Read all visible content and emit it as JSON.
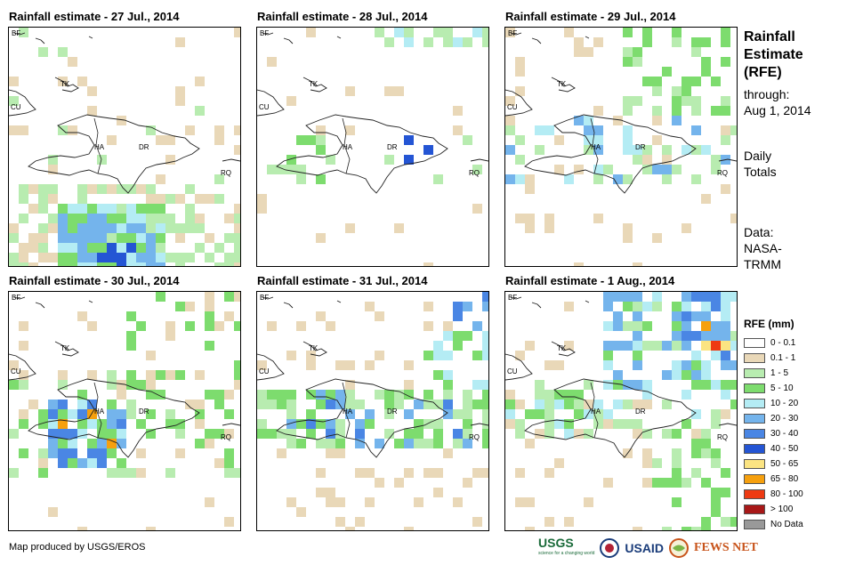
{
  "panels": [
    {
      "title": "Rainfall estimate - 27 Jul., 2014",
      "pattern": "south-heavy"
    },
    {
      "title": "Rainfall estimate - 28 Jul., 2014",
      "pattern": "sparse"
    },
    {
      "title": "Rainfall estimate - 29 Jul., 2014",
      "pattern": "north-scattered"
    },
    {
      "title": "Rainfall estimate - 30 Jul., 2014",
      "pattern": "haiti-heavy"
    },
    {
      "title": "Rainfall estimate - 31 Jul., 2014",
      "pattern": "central-band"
    },
    {
      "title": "Rainfall estimate - 1 Aug., 2014",
      "pattern": "northeast-intense"
    }
  ],
  "map_labels": {
    "bf": "BF",
    "cu": "CU",
    "tk": "TK",
    "ha": "HA",
    "dr": "DR",
    "rq": "RQ"
  },
  "side": {
    "title_line1": "Rainfall",
    "title_line2": "Estimate",
    "title_line3": "(RFE)",
    "through": "through:",
    "date": "Aug 1, 2014",
    "daily": "Daily",
    "totals": "Totals",
    "data_label": "Data:",
    "data_src1": "NASA-",
    "data_src2": "TRMM"
  },
  "legend": {
    "title": "RFE (mm)",
    "items": [
      {
        "label": "0 - 0.1",
        "color": "#ffffff"
      },
      {
        "label": "0.1 - 1",
        "color": "#e9d8b8"
      },
      {
        "label": "1 - 5",
        "color": "#b8ecb0"
      },
      {
        "label": "5 - 10",
        "color": "#7ddc6e"
      },
      {
        "label": "10 - 20",
        "color": "#b4ecf4"
      },
      {
        "label": "20 - 30",
        "color": "#74b4ec"
      },
      {
        "label": "30 - 40",
        "color": "#4a86e4"
      },
      {
        "label": "40 - 50",
        "color": "#2455d4"
      },
      {
        "label": "50 - 65",
        "color": "#fbe482"
      },
      {
        "label": "65 - 80",
        "color": "#f6a00e"
      },
      {
        "label": "80 - 100",
        "color": "#ee3a12"
      },
      {
        "label": "> 100",
        "color": "#a81818"
      },
      {
        "label": "No Data",
        "color": "#999999"
      }
    ]
  },
  "footer": {
    "credit": "Map produced by USGS/EROS"
  },
  "logos": {
    "usgs": "USGS",
    "usgs_tag": "science for a changing world",
    "usaid": "USAID",
    "fews": "FEWS NET"
  }
}
